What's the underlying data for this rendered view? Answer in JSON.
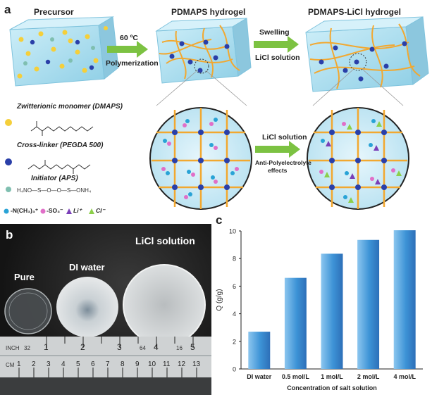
{
  "panel_a": {
    "letter": "a",
    "titles": {
      "precursor": "Precursor",
      "pdmaps": "PDMAPS hydrogel",
      "pdmaps_licl": "PDMAPS-LiCl hydrogel"
    },
    "arrow1": {
      "top": "60 ºC",
      "bottom": "Polymerization"
    },
    "arrow2": {
      "top": "Swelling",
      "bottom": "LiCl solution"
    },
    "arrow3": {
      "top": "LiCl solution",
      "bottom1": "Anti-Polyelectrolyte",
      "bottom2": "effects"
    },
    "legend": {
      "monomer": "Zwitterionic monomer  (DMAPS)",
      "crosslinker": "Cross-linker   (PEGDA 500)",
      "initiator": "Initiator (APS)",
      "apsformula": "H₄NO—S—O—O—S—ONH₄",
      "ions": [
        {
          "text": "-N(CH₃)₃⁺",
          "color": "#29a3d6",
          "shape": "circle"
        },
        {
          "text": "-SO₃⁻",
          "color": "#e06fc8",
          "shape": "circle"
        },
        {
          "text": "Li⁺",
          "color": "#7a3fb8",
          "shape": "triangle"
        },
        {
          "text": "Cl⁻",
          "color": "#8ccf4a",
          "shape": "triangle"
        }
      ]
    },
    "colors": {
      "box": "#a9dcef",
      "arrow": "#7cc242",
      "fiber": "#f2a830",
      "node": "#2a3fa8",
      "yellow": "#f5cf3a",
      "teal": "#7fbfb0"
    }
  },
  "panel_b": {
    "letter": "b",
    "labels": {
      "pure": "Pure",
      "di": "DI water",
      "licl": "LiCl solution"
    },
    "ruler": {
      "inch": "INCH",
      "inch_marks": [
        "1",
        "2",
        "3",
        "4",
        "5"
      ],
      "small_marks": [
        "32",
        "64",
        "16"
      ],
      "cm": "CM",
      "cm_marks": [
        "1",
        "2",
        "3",
        "4",
        "5",
        "6",
        "7",
        "8",
        "9",
        "10",
        "11",
        "12",
        "13"
      ]
    }
  },
  "panel_c": {
    "letter": "c"
  },
  "chart_data": {
    "type": "bar",
    "categories": [
      "DI water",
      "0.5 mol/L",
      "1 mol/L",
      "2 mol/L",
      "4 mol/L"
    ],
    "values": [
      2.7,
      6.6,
      8.35,
      9.35,
      10.05
    ],
    "xlabel": "Concentration of salt solution",
    "ylabel": "Q (g/g)",
    "ylim": [
      0,
      10
    ],
    "yticks": [
      "0",
      "2",
      "4",
      "6",
      "8",
      "10"
    ],
    "bar_color": "#3d93d6",
    "grid": false
  }
}
